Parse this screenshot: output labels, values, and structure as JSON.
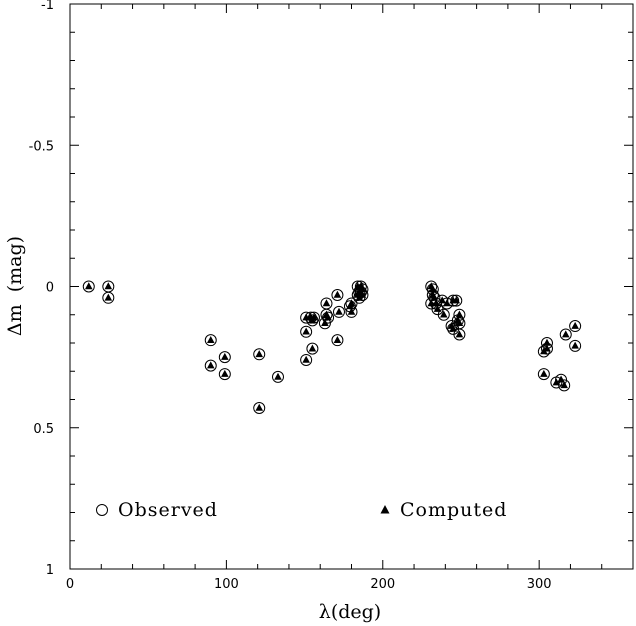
{
  "chart_data": {
    "type": "scatter",
    "xlabel": "λ(deg)",
    "ylabel": "Δm  (mag)",
    "xlim": [
      0,
      360
    ],
    "ylim": [
      -1,
      1
    ],
    "y_inverted": true,
    "x_ticks": [
      "0",
      "100",
      "200",
      "300"
    ],
    "x_tick_values": [
      0,
      100,
      200,
      300
    ],
    "y_ticks": [
      "-1",
      "-0.5",
      "0",
      "0.5",
      "1"
    ],
    "y_tick_values": [
      -1,
      -0.5,
      0,
      0.5,
      1
    ],
    "legend_position": "bottom",
    "series": [
      {
        "name": "Observed",
        "marker": "open-circle",
        "x": [
          12,
          24.5,
          24.5,
          90,
          90,
          99,
          99,
          121,
          121,
          133,
          151,
          151,
          151,
          154,
          155,
          155,
          156,
          163,
          164,
          164,
          165,
          171,
          171,
          172,
          179,
          180,
          180,
          184,
          184,
          185,
          185,
          186,
          186,
          187,
          187,
          231,
          231,
          232,
          232,
          233,
          234,
          235,
          238,
          239,
          241,
          244,
          245,
          245,
          247,
          248,
          249,
          249,
          249,
          303,
          303,
          305,
          305,
          311,
          314,
          316,
          317,
          323,
          323
        ],
        "y": [
          0.0,
          0.0,
          0.04,
          0.19,
          0.28,
          0.25,
          0.31,
          0.24,
          0.43,
          0.32,
          0.11,
          0.16,
          0.26,
          0.11,
          0.12,
          0.22,
          0.11,
          0.13,
          0.1,
          0.06,
          0.11,
          0.03,
          0.19,
          0.09,
          0.07,
          0.06,
          0.09,
          0.0,
          0.03,
          0.02,
          0.04,
          0.0,
          0.02,
          0.01,
          0.03,
          0.0,
          0.06,
          0.01,
          0.03,
          0.04,
          0.06,
          0.08,
          0.05,
          0.1,
          0.06,
          0.14,
          0.05,
          0.15,
          0.05,
          0.12,
          0.17,
          0.1,
          0.13,
          0.23,
          0.31,
          0.2,
          0.22,
          0.34,
          0.33,
          0.35,
          0.17,
          0.14,
          0.21
        ]
      },
      {
        "name": "Computed",
        "marker": "filled-triangle",
        "x": [
          12,
          24.5,
          24.5,
          90,
          90,
          99,
          99,
          121,
          121,
          133,
          151,
          151,
          151,
          154,
          155,
          155,
          156,
          163,
          164,
          164,
          165,
          171,
          171,
          172,
          179,
          180,
          180,
          184,
          184,
          185,
          185,
          186,
          186,
          187,
          187,
          231,
          231,
          232,
          232,
          233,
          234,
          235,
          238,
          239,
          241,
          244,
          245,
          245,
          247,
          248,
          249,
          249,
          249,
          303,
          303,
          305,
          305,
          311,
          314,
          316,
          317,
          323,
          323
        ],
        "y": [
          0.0,
          0.0,
          0.04,
          0.19,
          0.28,
          0.25,
          0.31,
          0.24,
          0.43,
          0.32,
          0.11,
          0.16,
          0.26,
          0.11,
          0.12,
          0.22,
          0.11,
          0.13,
          0.1,
          0.06,
          0.11,
          0.03,
          0.19,
          0.09,
          0.07,
          0.06,
          0.09,
          0.0,
          0.03,
          0.02,
          0.04,
          0.0,
          0.02,
          0.01,
          0.03,
          0.0,
          0.06,
          0.01,
          0.03,
          0.04,
          0.06,
          0.08,
          0.05,
          0.1,
          0.06,
          0.14,
          0.05,
          0.15,
          0.05,
          0.12,
          0.17,
          0.1,
          0.13,
          0.23,
          0.31,
          0.2,
          0.22,
          0.34,
          0.33,
          0.35,
          0.17,
          0.14,
          0.21
        ]
      }
    ]
  }
}
